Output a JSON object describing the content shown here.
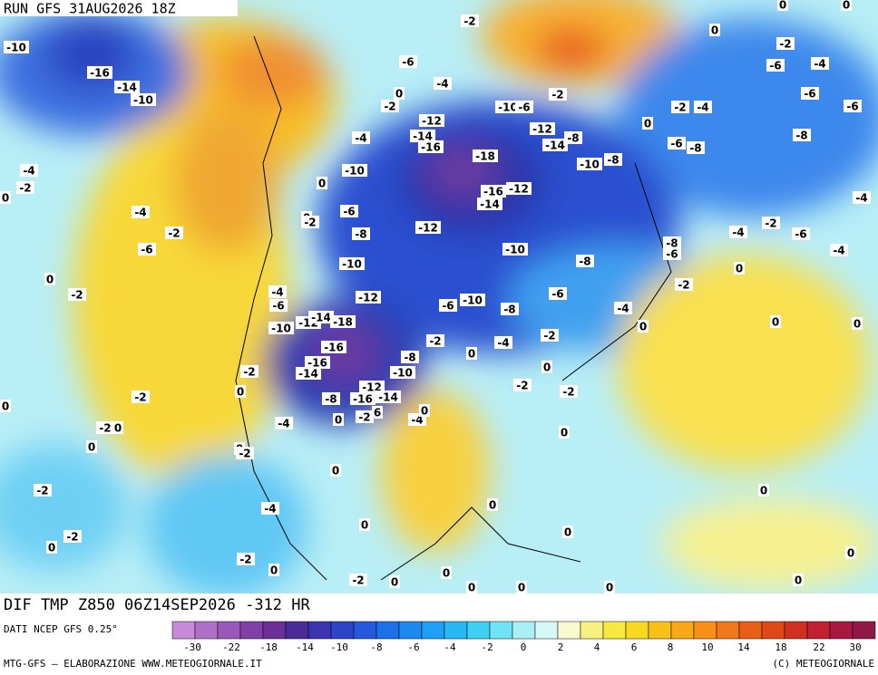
{
  "header": {
    "run": "RUN GFS 31AUG2026 18Z"
  },
  "map": {
    "contour_labels": [
      -10,
      -16,
      -14,
      -10,
      -4,
      -2,
      -4,
      -2,
      -6,
      0,
      -2,
      0,
      -2,
      -6,
      -4,
      -2,
      -10,
      -6,
      -12,
      -14,
      -16,
      -18,
      -16,
      -12,
      -14,
      -12,
      -14,
      -8,
      -10,
      -8,
      -10,
      -6,
      -8,
      -12,
      -10,
      -8,
      -10,
      -12,
      -4,
      -6,
      -10,
      -12,
      -14,
      -18,
      -16,
      -16,
      -14,
      -12,
      -16,
      -14,
      -10,
      -8,
      -2,
      -4,
      -8,
      -6,
      -10,
      -6,
      -2,
      -4,
      -2,
      -8,
      -6,
      -4,
      -2,
      -6,
      -4,
      -4,
      -8,
      -6,
      -8,
      -2,
      -4,
      -6,
      -4,
      -2,
      -6,
      -6,
      0,
      0,
      -2,
      0,
      -4,
      0,
      0,
      -2,
      -2,
      0,
      -2,
      -2,
      0,
      0,
      -4,
      0,
      -4,
      0,
      -2,
      6,
      -8,
      0,
      -2,
      0,
      -2,
      -2,
      0,
      -4,
      0,
      0,
      0,
      0,
      -2,
      0,
      -2,
      0,
      0,
      0,
      0,
      0,
      0,
      0,
      0,
      -2,
      -2,
      0,
      0,
      0,
      0,
      0,
      0,
      0,
      0,
      0
    ]
  },
  "footer": {
    "field": "DIF TMP Z850 06Z14SEP2026 -312 HR",
    "source": "DATI NCEP GFS 0.25°",
    "credit": "MTG-GFS — ELABORAZIONE WWW.METEOGIORNALE.IT",
    "copyright": "(C) METEOGIORNALE"
  },
  "colorbar": {
    "colors": [
      "#c78ad8",
      "#b070c8",
      "#9a58b8",
      "#8040a8",
      "#6a3098",
      "#4a2c98",
      "#3a34b0",
      "#2c44c8",
      "#2458dc",
      "#1c70e8",
      "#1c88f0",
      "#20a0f4",
      "#28b8f4",
      "#40d0f4",
      "#70e4f4",
      "#a8f0f4",
      "#d8f8f8",
      "#fafad0",
      "#f8f080",
      "#f8e840",
      "#f8d820",
      "#f8c018",
      "#f8a818",
      "#f89018",
      "#f07818",
      "#e86018",
      "#e04818",
      "#d03020",
      "#c02030",
      "#a81840",
      "#901848"
    ],
    "labels": [
      -30,
      -22,
      -18,
      -14,
      -10,
      -8,
      -6,
      -4,
      -2,
      0,
      2,
      4,
      6,
      8,
      10,
      14,
      18,
      22,
      30
    ]
  }
}
